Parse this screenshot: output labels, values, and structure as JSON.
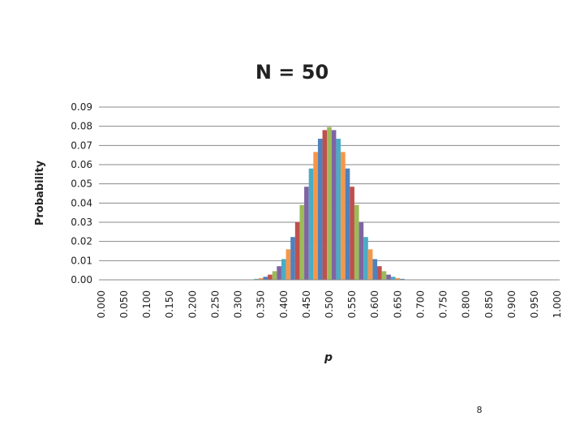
{
  "chart_data": {
    "type": "bar",
    "title": "N = 50",
    "x_label": "p",
    "y_label": "Probability",
    "categories": [
      "0.000",
      null,
      null,
      null,
      null,
      "0.050",
      null,
      null,
      null,
      null,
      "0.100",
      null,
      null,
      null,
      null,
      "0.150",
      null,
      null,
      null,
      null,
      "0.200",
      null,
      null,
      null,
      null,
      "0.250",
      null,
      null,
      null,
      null,
      "0.300",
      null,
      null,
      null,
      null,
      "0.350",
      null,
      null,
      null,
      null,
      "0.400",
      null,
      null,
      null,
      null,
      "0.450",
      null,
      null,
      null,
      null,
      "0.500",
      null,
      null,
      null,
      null,
      "0.550",
      null,
      null,
      null,
      null,
      "0.600",
      null,
      null,
      null,
      null,
      "0.650",
      null,
      null,
      null,
      null,
      "0.700",
      null,
      null,
      null,
      null,
      "0.750",
      null,
      null,
      null,
      null,
      "0.800",
      null,
      null,
      null,
      null,
      "0.850",
      null,
      null,
      null,
      null,
      "0.900",
      null,
      null,
      null,
      null,
      "0.950",
      null,
      null,
      null,
      null,
      "1.000"
    ],
    "values": [
      0,
      0,
      0,
      0,
      0,
      0,
      0,
      0,
      0,
      0,
      0,
      0,
      0,
      0,
      0,
      0,
      0,
      0,
      0,
      0,
      0,
      0,
      0,
      0,
      0,
      0,
      0,
      0,
      0,
      0,
      0,
      0,
      0.0001,
      0.0002,
      0.0005,
      0.0009,
      0.0016,
      0.0027,
      0.0045,
      0.0071,
      0.0108,
      0.0159,
      0.0223,
      0.0301,
      0.039,
      0.0485,
      0.058,
      0.0666,
      0.0735,
      0.078,
      0.0796,
      0.078,
      0.0735,
      0.0666,
      0.058,
      0.0485,
      0.039,
      0.0301,
      0.0223,
      0.0159,
      0.0108,
      0.0071,
      0.0045,
      0.0027,
      0.0016,
      0.0009,
      0.0005,
      0.0002,
      0.0001,
      0,
      0,
      0,
      0,
      0,
      0,
      0,
      0,
      0,
      0,
      0,
      0,
      0,
      0,
      0,
      0,
      0,
      0,
      0,
      0,
      0,
      0,
      0,
      0,
      0,
      0,
      0,
      0,
      0,
      0,
      0,
      0
    ],
    "colors": [
      "#4f81bd",
      "#c0504d",
      "#9bbb59",
      "#8064a2",
      "#4bacc6",
      "#f79646"
    ],
    "ylim": [
      0,
      0.09
    ],
    "yticks": [
      {
        "value": 0,
        "label": "0.00"
      },
      0.01,
      0.02,
      0.03,
      0.04,
      0.05,
      0.06,
      0.07,
      0.08,
      0.09
    ],
    "grid": true
  },
  "page_number": "8"
}
